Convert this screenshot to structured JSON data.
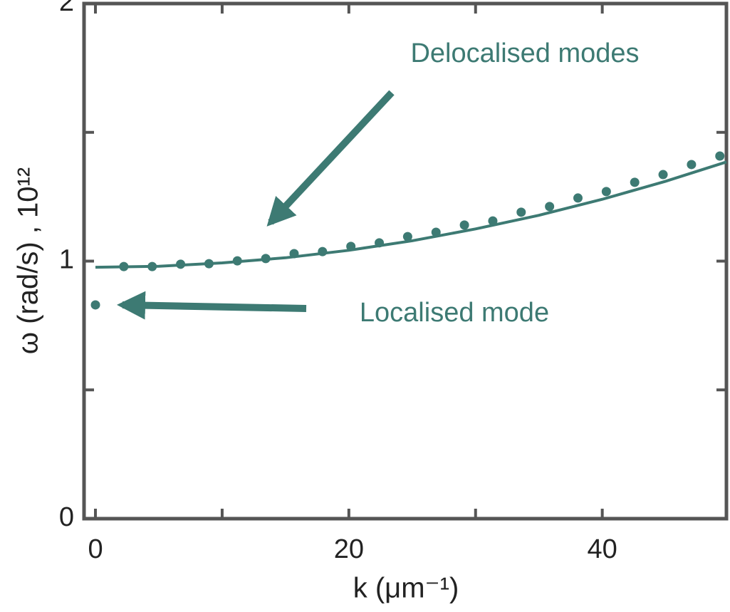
{
  "chart_data": {
    "type": "scatter",
    "xlabel": "k (μm⁻¹)",
    "ylabel": "ω (rad/s) , 10¹²",
    "xlim": [
      -0.9,
      49.8
    ],
    "xticks": [
      0,
      20,
      40
    ],
    "xminor_ticks": [
      10,
      30
    ],
    "ylim": [
      0,
      2
    ],
    "yticks": [
      0,
      1,
      2
    ],
    "yminor_ticks": [
      0.5,
      1.5
    ],
    "color": "#3d7a73",
    "series": [
      {
        "kind": "points",
        "x": [
          0,
          2.24,
          4.48,
          6.72,
          8.96,
          11.2,
          13.44,
          15.68,
          17.92,
          20.16,
          22.4,
          24.64,
          26.88,
          29.12,
          31.36,
          33.6,
          35.84,
          38.08,
          40.32,
          42.56,
          44.8,
          47.04,
          49.28
        ],
        "values": [
          0.83,
          0.979,
          0.979,
          0.988,
          0.99,
          1.001,
          1.01,
          1.029,
          1.037,
          1.057,
          1.071,
          1.095,
          1.112,
          1.14,
          1.156,
          1.19,
          1.212,
          1.245,
          1.27,
          1.306,
          1.336,
          1.375,
          1.408
        ]
      },
      {
        "kind": "line",
        "x": [
          0,
          5,
          10,
          15,
          20,
          25,
          30,
          35,
          40,
          45,
          49.8
        ],
        "values": [
          0.976,
          0.98,
          0.993,
          1.013,
          1.042,
          1.079,
          1.125,
          1.178,
          1.24,
          1.31,
          1.385
        ]
      }
    ],
    "annotations": [
      "Delocalised modes",
      "Localised mode"
    ]
  }
}
